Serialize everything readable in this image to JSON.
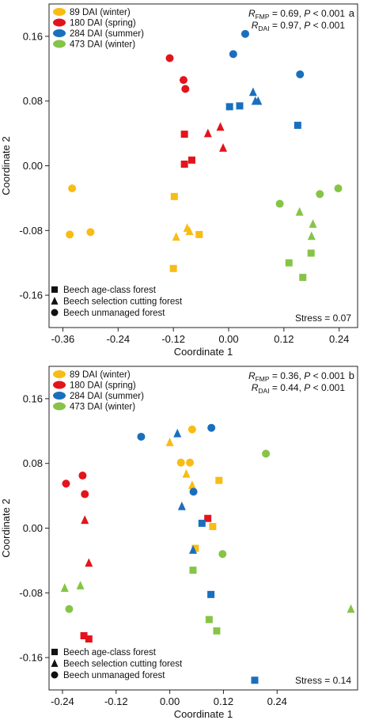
{
  "colors": {
    "89": "#F9BC15",
    "180": "#E3141B",
    "284": "#1A6FBD",
    "473": "#86C447"
  },
  "chart_data": [
    {
      "type": "scatter",
      "panel": "a",
      "xlabel": "Coordinate 1",
      "ylabel": "Coordinate 2",
      "xlim": [
        -0.39,
        0.28
      ],
      "ylim": [
        -0.2,
        0.2
      ],
      "xticks": [
        -0.36,
        -0.24,
        -0.12,
        0.0,
        0.12,
        0.24
      ],
      "xtick_labels": [
        "-0.36",
        "-0.24",
        "-0.12",
        "0.00",
        "0.12",
        "0.24"
      ],
      "yticks": [
        -0.16,
        -0.08,
        0.0,
        0.08,
        0.16
      ],
      "ytick_labels": [
        "-0.16",
        "-0.08",
        "0.00",
        "0.08",
        "0.16"
      ],
      "stats": [
        {
          "prefix": "R",
          "sub": "FMP",
          "text": " = 0.69, ",
          "p": "P",
          "ptext": " < 0.001"
        },
        {
          "prefix": "R",
          "sub": "DAI",
          "text": " = 0.97, ",
          "p": "P",
          "ptext": " < 0.001"
        }
      ],
      "stress": "Stress = 0.07",
      "legend_dai": [
        {
          "key": "89",
          "label": "89 DAI (winter)"
        },
        {
          "key": "180",
          "label": "180 DAI (spring)"
        },
        {
          "key": "284",
          "label": "284 DAI (summer)"
        },
        {
          "key": "473",
          "label": "473 DAI (winter)"
        }
      ],
      "legend_forest": [
        {
          "shape": "square",
          "label": "Beech age-class forest"
        },
        {
          "shape": "triangle",
          "label": "Beech selection cutting forest"
        },
        {
          "shape": "circle",
          "label": "Beech unmanaged forest"
        }
      ],
      "points": [
        {
          "dai": "89",
          "shape": "circle",
          "x": -0.34,
          "y": -0.028
        },
        {
          "dai": "89",
          "shape": "circle",
          "x": -0.345,
          "y": -0.085
        },
        {
          "dai": "89",
          "shape": "circle",
          "x": -0.3,
          "y": -0.082
        },
        {
          "dai": "89",
          "shape": "square",
          "x": -0.118,
          "y": -0.038
        },
        {
          "dai": "89",
          "shape": "square",
          "x": -0.12,
          "y": -0.127
        },
        {
          "dai": "89",
          "shape": "square",
          "x": -0.064,
          "y": -0.085
        },
        {
          "dai": "89",
          "shape": "triangle",
          "x": -0.114,
          "y": -0.088
        },
        {
          "dai": "89",
          "shape": "triangle",
          "x": -0.09,
          "y": -0.077
        },
        {
          "dai": "89",
          "shape": "triangle",
          "x": -0.085,
          "y": -0.081
        },
        {
          "dai": "180",
          "shape": "circle",
          "x": -0.128,
          "y": 0.133
        },
        {
          "dai": "180",
          "shape": "circle",
          "x": -0.098,
          "y": 0.106
        },
        {
          "dai": "180",
          "shape": "circle",
          "x": -0.094,
          "y": 0.095
        },
        {
          "dai": "180",
          "shape": "square",
          "x": -0.096,
          "y": 0.039
        },
        {
          "dai": "180",
          "shape": "square",
          "x": -0.096,
          "y": 0.002
        },
        {
          "dai": "180",
          "shape": "square",
          "x": -0.08,
          "y": 0.007
        },
        {
          "dai": "180",
          "shape": "triangle",
          "x": -0.045,
          "y": 0.04
        },
        {
          "dai": "180",
          "shape": "triangle",
          "x": -0.018,
          "y": 0.048
        },
        {
          "dai": "180",
          "shape": "triangle",
          "x": -0.012,
          "y": 0.022
        },
        {
          "dai": "284",
          "shape": "circle",
          "x": 0.036,
          "y": 0.163
        },
        {
          "dai": "284",
          "shape": "circle",
          "x": 0.01,
          "y": 0.138
        },
        {
          "dai": "284",
          "shape": "circle",
          "x": 0.155,
          "y": 0.113
        },
        {
          "dai": "284",
          "shape": "square",
          "x": 0.002,
          "y": 0.073
        },
        {
          "dai": "284",
          "shape": "square",
          "x": 0.024,
          "y": 0.074
        },
        {
          "dai": "284",
          "shape": "square",
          "x": 0.15,
          "y": 0.05
        },
        {
          "dai": "284",
          "shape": "triangle",
          "x": 0.053,
          "y": 0.091
        },
        {
          "dai": "284",
          "shape": "triangle",
          "x": 0.058,
          "y": 0.08
        },
        {
          "dai": "284",
          "shape": "triangle",
          "x": 0.064,
          "y": 0.08
        },
        {
          "dai": "473",
          "shape": "circle",
          "x": 0.111,
          "y": -0.047
        },
        {
          "dai": "473",
          "shape": "circle",
          "x": 0.198,
          "y": -0.035
        },
        {
          "dai": "473",
          "shape": "circle",
          "x": 0.238,
          "y": -0.028
        },
        {
          "dai": "473",
          "shape": "square",
          "x": 0.131,
          "y": -0.12
        },
        {
          "dai": "473",
          "shape": "square",
          "x": 0.161,
          "y": -0.138
        },
        {
          "dai": "473",
          "shape": "square",
          "x": 0.179,
          "y": -0.108
        },
        {
          "dai": "473",
          "shape": "triangle",
          "x": 0.154,
          "y": -0.057
        },
        {
          "dai": "473",
          "shape": "triangle",
          "x": 0.183,
          "y": -0.072
        },
        {
          "dai": "473",
          "shape": "triangle",
          "x": 0.18,
          "y": -0.087
        }
      ]
    },
    {
      "type": "scatter",
      "panel": "b",
      "xlabel": "Coordinate 1",
      "ylabel": "Coordinate 2",
      "xlim": [
        -0.27,
        0.42
      ],
      "ylim": [
        -0.2,
        0.2
      ],
      "xticks": [
        -0.24,
        -0.12,
        0.0,
        0.12,
        0.24
      ],
      "xtick_labels": [
        "-0.24",
        "-0.12",
        "0.00",
        "0.12",
        "0.24"
      ],
      "yticks": [
        -0.16,
        -0.08,
        0.0,
        0.08,
        0.16
      ],
      "ytick_labels": [
        "-0.16",
        "-0.08",
        "0.00",
        "0.08",
        "0.16"
      ],
      "stats": [
        {
          "prefix": "R",
          "sub": "FMP",
          "text": " = 0.36, ",
          "p": "P",
          "ptext": " < 0.001"
        },
        {
          "prefix": "R",
          "sub": "DAI",
          "text": " = 0.44, ",
          "p": "P",
          "ptext": " < 0.001"
        }
      ],
      "stress": "Stress = 0.14",
      "legend_dai": [
        {
          "key": "89",
          "label": "89 DAI (winter)"
        },
        {
          "key": "180",
          "label": "180 DAI (spring)"
        },
        {
          "key": "284",
          "label": "284 DAI (summer)"
        },
        {
          "key": "473",
          "label": "473 DAI (winter)"
        }
      ],
      "legend_forest": [
        {
          "shape": "square",
          "label": "Beech age-class forest"
        },
        {
          "shape": "triangle",
          "label": "Beech selection cutting forest"
        },
        {
          "shape": "circle",
          "label": "Beech unmanaged forest"
        }
      ],
      "points": [
        {
          "dai": "89",
          "shape": "circle",
          "x": 0.05,
          "y": 0.122
        },
        {
          "dai": "89",
          "shape": "circle",
          "x": 0.025,
          "y": 0.081
        },
        {
          "dai": "89",
          "shape": "circle",
          "x": 0.045,
          "y": 0.081
        },
        {
          "dai": "89",
          "shape": "triangle",
          "x": 0.0,
          "y": 0.106
        },
        {
          "dai": "89",
          "shape": "triangle",
          "x": 0.037,
          "y": 0.067
        },
        {
          "dai": "89",
          "shape": "triangle",
          "x": 0.05,
          "y": 0.053
        },
        {
          "dai": "89",
          "shape": "square",
          "x": 0.11,
          "y": 0.059
        },
        {
          "dai": "89",
          "shape": "square",
          "x": 0.096,
          "y": 0.002
        },
        {
          "dai": "89",
          "shape": "square",
          "x": 0.057,
          "y": -0.025
        },
        {
          "dai": "180",
          "shape": "circle",
          "x": -0.232,
          "y": 0.055
        },
        {
          "dai": "180",
          "shape": "circle",
          "x": -0.195,
          "y": 0.065
        },
        {
          "dai": "180",
          "shape": "circle",
          "x": -0.19,
          "y": 0.042
        },
        {
          "dai": "180",
          "shape": "triangle",
          "x": -0.19,
          "y": 0.01
        },
        {
          "dai": "180",
          "shape": "triangle",
          "x": -0.181,
          "y": -0.043
        },
        {
          "dai": "180",
          "shape": "square",
          "x": -0.192,
          "y": -0.133
        },
        {
          "dai": "180",
          "shape": "square",
          "x": -0.181,
          "y": -0.137
        },
        {
          "dai": "180",
          "shape": "square",
          "x": 0.085,
          "y": 0.012
        },
        {
          "dai": "284",
          "shape": "circle",
          "x": -0.064,
          "y": 0.113
        },
        {
          "dai": "284",
          "shape": "circle",
          "x": 0.093,
          "y": 0.124
        },
        {
          "dai": "284",
          "shape": "circle",
          "x": 0.053,
          "y": 0.045
        },
        {
          "dai": "284",
          "shape": "triangle",
          "x": 0.017,
          "y": 0.117
        },
        {
          "dai": "284",
          "shape": "triangle",
          "x": 0.027,
          "y": 0.027
        },
        {
          "dai": "284",
          "shape": "triangle",
          "x": 0.052,
          "y": -0.027
        },
        {
          "dai": "284",
          "shape": "square",
          "x": 0.072,
          "y": 0.006
        },
        {
          "dai": "284",
          "shape": "square",
          "x": 0.092,
          "y": -0.082
        },
        {
          "dai": "284",
          "shape": "square",
          "x": 0.19,
          "y": -0.188
        },
        {
          "dai": "473",
          "shape": "circle",
          "x": 0.215,
          "y": 0.092
        },
        {
          "dai": "473",
          "shape": "circle",
          "x": 0.118,
          "y": -0.032
        },
        {
          "dai": "473",
          "shape": "circle",
          "x": -0.225,
          "y": -0.1
        },
        {
          "dai": "473",
          "shape": "triangle",
          "x": -0.235,
          "y": -0.074
        },
        {
          "dai": "473",
          "shape": "triangle",
          "x": -0.2,
          "y": -0.071
        },
        {
          "dai": "473",
          "shape": "triangle",
          "x": 0.405,
          "y": -0.1
        },
        {
          "dai": "473",
          "shape": "square",
          "x": 0.052,
          "y": -0.052
        },
        {
          "dai": "473",
          "shape": "square",
          "x": 0.088,
          "y": -0.113
        },
        {
          "dai": "473",
          "shape": "square",
          "x": 0.105,
          "y": -0.127
        }
      ]
    }
  ]
}
